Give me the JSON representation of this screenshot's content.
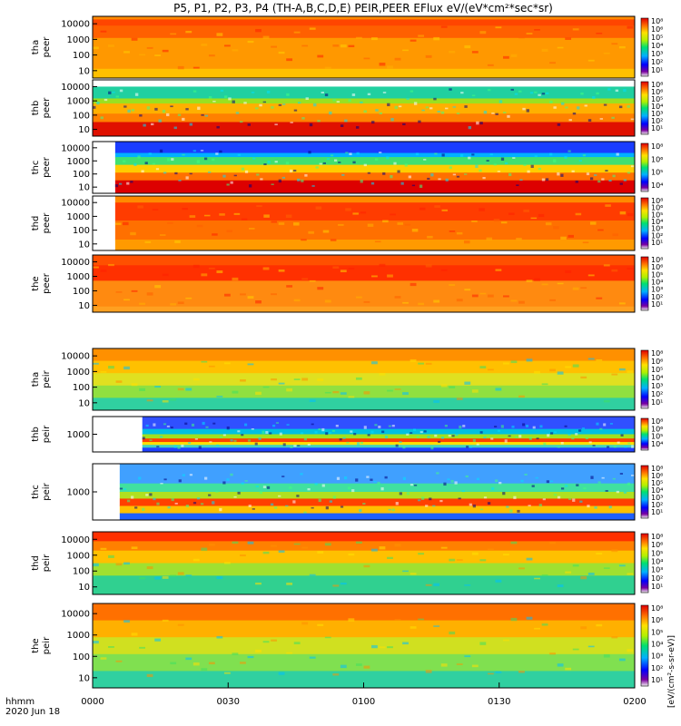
{
  "chart_data": {
    "type": "heatmap",
    "title": "P5, P1, P2, P3, P4 (TH-A,B,C,D,E) PEIR,PEER EFlux eV/(eV*cm²*sec*sr)",
    "colorbar_unit": "[eV/(cm²-s-sr-eV)]",
    "time_axis": {
      "label_line1": "hhmm",
      "label_line2": "2020 Jun 18",
      "ticks": [
        "0000",
        "0030",
        "0100",
        "0130",
        "0200"
      ],
      "range_minutes": [
        0,
        120
      ]
    },
    "colorbar_ticks": [
      "10⁸",
      "10⁶",
      "10⁵",
      "10⁴",
      "10³",
      "10²",
      "10¹"
    ],
    "panels": [
      {
        "probe": "tha",
        "species": "peer",
        "yticks": [
          "10000",
          "1000",
          "100",
          "10"
        ],
        "data_start_min": 0,
        "bands": [
          [
            0,
            0.05,
            "#ff8a00"
          ],
          [
            0.05,
            0.15,
            "#ff4500"
          ],
          [
            0.15,
            0.35,
            "#ff6000"
          ],
          [
            0.35,
            0.85,
            "#ff9800"
          ],
          [
            0.85,
            1,
            "#ffc000"
          ]
        ],
        "noise": "warm"
      },
      {
        "probe": "thb",
        "species": "peer",
        "yticks": [
          "10000",
          "1000",
          "100",
          "10"
        ],
        "data_start_min": 0,
        "bands": [
          [
            0,
            0.12,
            "#ffffff"
          ],
          [
            0.12,
            0.33,
            "#20d0a0"
          ],
          [
            0.33,
            0.42,
            "#9be020"
          ],
          [
            0.42,
            0.6,
            "#ffb000"
          ],
          [
            0.6,
            0.75,
            "#ff8000"
          ],
          [
            0.75,
            1,
            "#e01000"
          ]
        ],
        "noise": "speckle"
      },
      {
        "probe": "thc",
        "species": "peer",
        "yticks": [
          "10000",
          "1000",
          "100",
          "10"
        ],
        "data_start_min": 5,
        "bands": [
          [
            0,
            0.22,
            "#1a3cff"
          ],
          [
            0.22,
            0.3,
            "#00b0ff"
          ],
          [
            0.3,
            0.45,
            "#40e070"
          ],
          [
            0.45,
            0.6,
            "#ffcc00"
          ],
          [
            0.6,
            0.75,
            "#ff7000"
          ],
          [
            0.75,
            1,
            "#dd0000"
          ]
        ],
        "noise": "speckle"
      },
      {
        "probe": "thd",
        "species": "peer",
        "yticks": [
          "10000",
          "1000",
          "100",
          "10"
        ],
        "data_start_min": 5,
        "bands": [
          [
            0,
            0.12,
            "#ff8a00"
          ],
          [
            0.12,
            0.45,
            "#ff3c00"
          ],
          [
            0.45,
            0.8,
            "#ff7000"
          ],
          [
            0.8,
            1,
            "#ff9a00"
          ]
        ],
        "noise": "warm"
      },
      {
        "probe": "the",
        "species": "peer",
        "yticks": [
          "10000",
          "1000",
          "100",
          "10"
        ],
        "data_start_min": 0,
        "bands": [
          [
            0,
            0.18,
            "#ff5000"
          ],
          [
            0.18,
            0.45,
            "#ff3000"
          ],
          [
            0.45,
            0.9,
            "#ff8a10"
          ],
          [
            0.9,
            1,
            "#ffa020"
          ]
        ],
        "noise": "warm"
      },
      {
        "probe": "tha",
        "species": "peir",
        "yticks": [
          "10000",
          "1000",
          "100",
          "10"
        ],
        "data_start_min": 0,
        "bands": [
          [
            0,
            0.2,
            "#ff9000"
          ],
          [
            0.2,
            0.4,
            "#ffc000"
          ],
          [
            0.4,
            0.6,
            "#e0e020"
          ],
          [
            0.6,
            0.8,
            "#90e040"
          ],
          [
            0.8,
            1,
            "#30d0a0"
          ]
        ],
        "noise": "green"
      },
      {
        "probe": "thb",
        "species": "peir",
        "yticks": [
          "1000"
        ],
        "data_start_min": 11,
        "bands": [
          [
            0,
            0.35,
            "#3050ff"
          ],
          [
            0.35,
            0.5,
            "#00c0e0"
          ],
          [
            0.5,
            0.62,
            "#a0e020"
          ],
          [
            0.62,
            0.72,
            "#ff4000"
          ],
          [
            0.72,
            0.8,
            "#ffe000"
          ],
          [
            0.8,
            0.88,
            "#40d0c0"
          ],
          [
            0.88,
            1,
            "#2040ff"
          ]
        ],
        "noise": "speckle"
      },
      {
        "probe": "thc",
        "species": "peir",
        "yticks": [
          "1000"
        ],
        "data_start_min": 6,
        "bands": [
          [
            0,
            0.35,
            "#40a0ff"
          ],
          [
            0.35,
            0.5,
            "#40e0a0"
          ],
          [
            0.5,
            0.62,
            "#b0e020"
          ],
          [
            0.62,
            0.75,
            "#ff4000"
          ],
          [
            0.75,
            0.88,
            "#ffc000"
          ],
          [
            0.88,
            1,
            "#2060ff"
          ]
        ],
        "noise": "speckle"
      },
      {
        "probe": "thd",
        "species": "peir",
        "yticks": [
          "10000",
          "1000",
          "100",
          "10"
        ],
        "data_start_min": 0,
        "bands": [
          [
            0,
            0.15,
            "#ff3000"
          ],
          [
            0.15,
            0.3,
            "#ff8000"
          ],
          [
            0.3,
            0.5,
            "#ffc000"
          ],
          [
            0.5,
            0.7,
            "#a0e030"
          ],
          [
            0.7,
            1,
            "#30d090"
          ]
        ],
        "noise": "green"
      },
      {
        "probe": "the",
        "species": "peir",
        "yticks": [
          "10000",
          "1000",
          "100",
          "10"
        ],
        "data_start_min": 0,
        "bands": [
          [
            0,
            0.2,
            "#ff7000"
          ],
          [
            0.2,
            0.4,
            "#ffb000"
          ],
          [
            0.4,
            0.6,
            "#d0e020"
          ],
          [
            0.6,
            0.8,
            "#80e050"
          ],
          [
            0.8,
            1,
            "#30d0a0"
          ]
        ],
        "noise": "green"
      }
    ]
  }
}
